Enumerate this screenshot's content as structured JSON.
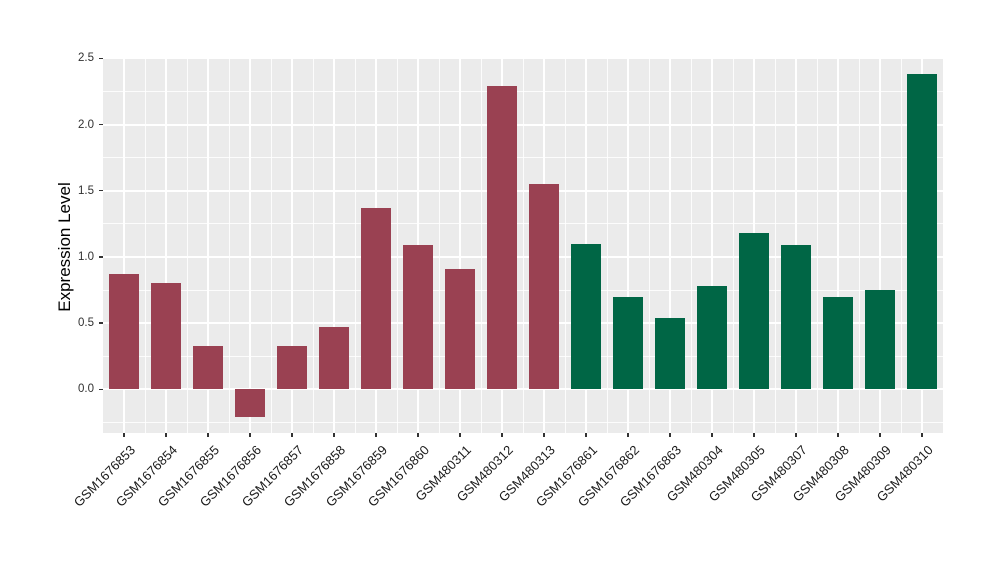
{
  "figure": {
    "background_color": "#FFFFFF",
    "panel_background_color": "#EBEBEB",
    "gridline_color": "#FFFFFF",
    "tick_mark_color": "#333333",
    "axis_text_color": "#303030"
  },
  "chart_data": {
    "type": "bar",
    "title": "",
    "xlabel": "",
    "ylabel": "Expression Level",
    "legend_position": "none",
    "grid": "major and minor white gridlines on grey panel (ggplot style)",
    "ylim": [
      -0.33,
      2.51
    ],
    "ytick_values": [
      0.0,
      0.5,
      1.0,
      1.5,
      2.0,
      2.5
    ],
    "ytick_labels": [
      "0.0",
      "0.5",
      "1.0",
      "1.5",
      "2.0",
      "2.5"
    ],
    "minor_ytick_values": [
      -0.25,
      0.25,
      0.75,
      1.25,
      1.75,
      2.25
    ],
    "bar_width_fraction": 0.7,
    "x_label_rotation_deg": 45,
    "categories": [
      "GSM1676853",
      "GSM1676854",
      "GSM1676855",
      "GSM1676856",
      "GSM1676857",
      "GSM1676858",
      "GSM1676859",
      "GSM1676860",
      "GSM480311",
      "GSM480312",
      "GSM480313",
      "GSM1676861",
      "GSM1676862",
      "GSM1676863",
      "GSM480304",
      "GSM480305",
      "GSM480307",
      "GSM480308",
      "GSM480309",
      "GSM480310"
    ],
    "values": [
      0.87,
      0.8,
      0.33,
      -0.21,
      0.33,
      0.47,
      1.37,
      1.09,
      0.91,
      2.29,
      1.55,
      1.1,
      0.7,
      0.54,
      0.78,
      1.18,
      1.09,
      0.7,
      0.75,
      2.38
    ],
    "bar_colors": [
      "#9A4152",
      "#9A4152",
      "#9A4152",
      "#9A4152",
      "#9A4152",
      "#9A4152",
      "#9A4152",
      "#9A4152",
      "#9A4152",
      "#9A4152",
      "#9A4152",
      "#006645",
      "#006645",
      "#006645",
      "#006645",
      "#006645",
      "#006645",
      "#006645",
      "#006645",
      "#006645"
    ],
    "color_groups": [
      {
        "color": "#9A4152",
        "first_category": "GSM1676853",
        "last_category": "GSM480313",
        "count": 11
      },
      {
        "color": "#006645",
        "first_category": "GSM1676861",
        "last_category": "GSM480310",
        "count": 9
      }
    ]
  }
}
